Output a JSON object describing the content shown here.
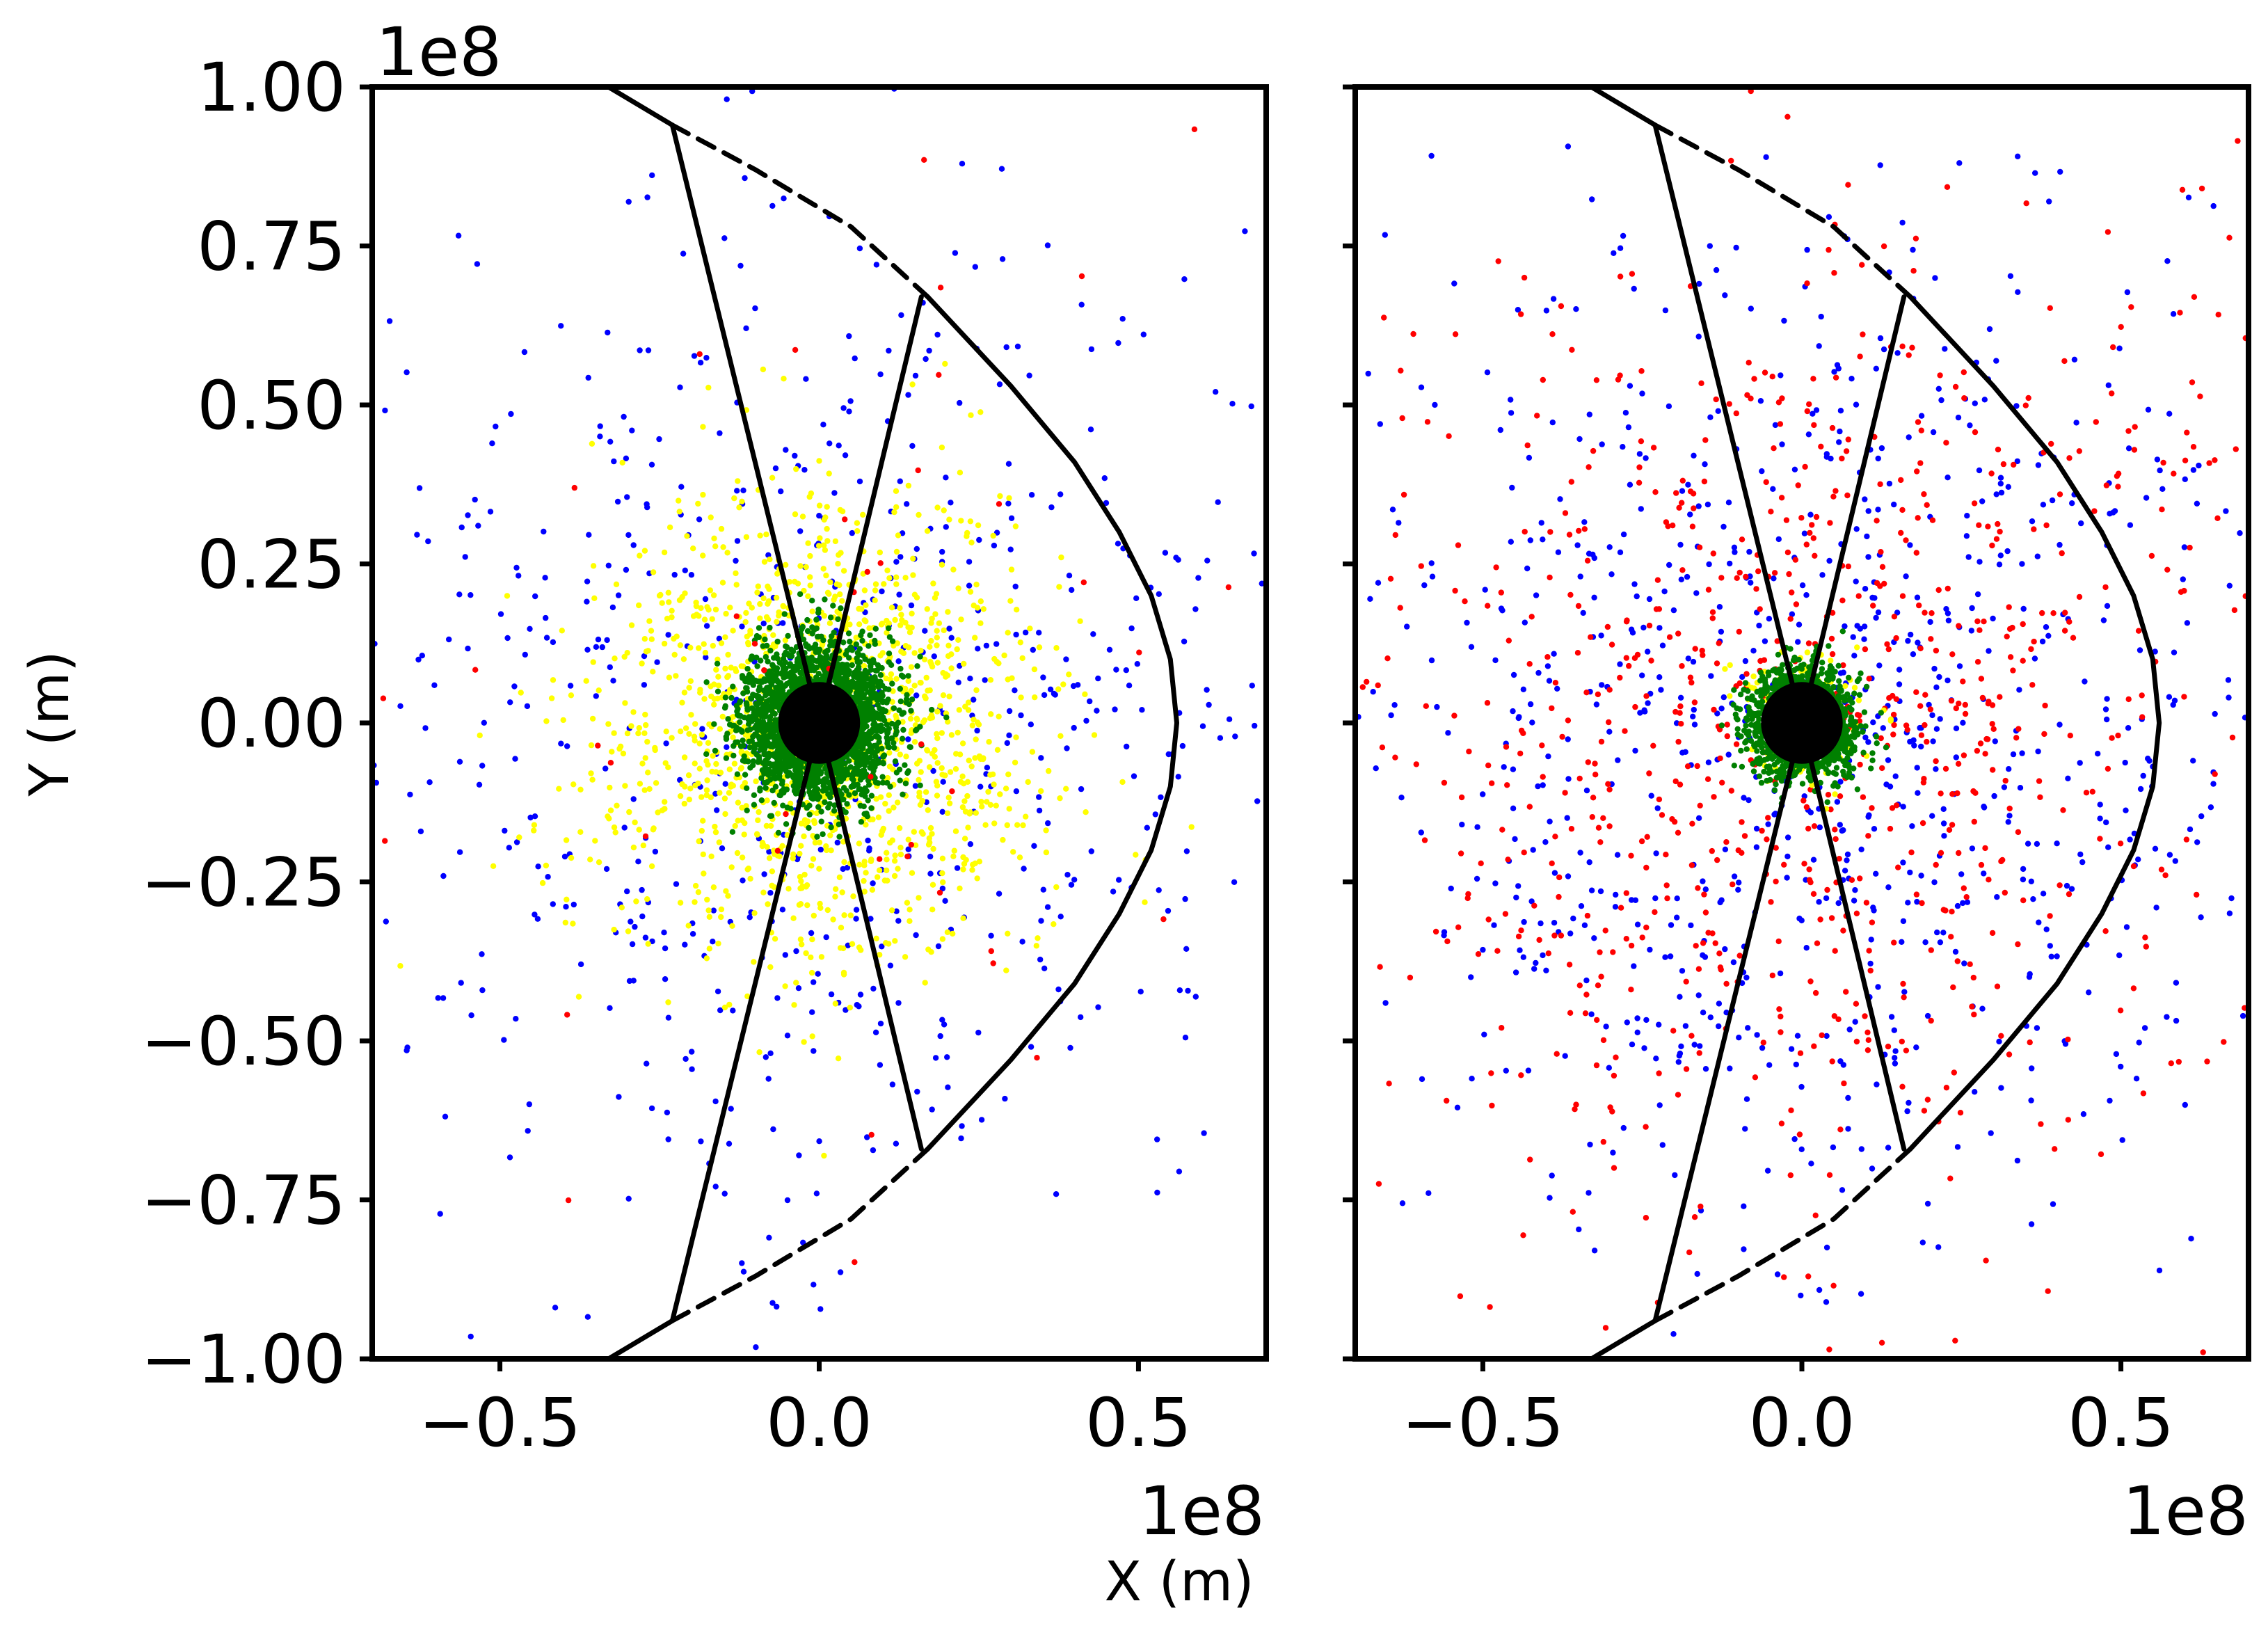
{
  "chart_data": [
    {
      "type": "scatter",
      "panel": "left",
      "xlabel": "X (m)",
      "ylabel": "Y (m)",
      "x_offset_label": "1e8",
      "y_offset_label": "1e8",
      "xlim": [
        -0.7,
        0.7
      ],
      "ylim": [
        -1.0,
        1.0
      ],
      "xticks": [
        -0.5,
        0.0,
        0.5
      ],
      "xtick_labels": [
        "−0.5",
        "0.0",
        "0.5"
      ],
      "yticks": [
        1.0,
        0.75,
        0.5,
        0.25,
        0.0,
        -0.25,
        -0.5,
        -0.75,
        -1.0
      ],
      "ytick_labels": [
        "1.00",
        "0.75",
        "0.50",
        "0.25",
        "0.00",
        "−0.25",
        "−0.50",
        "−0.75",
        "−1.00"
      ],
      "units_scale": 100000000,
      "planet": {
        "x": 0.0,
        "y": 0.0,
        "radius": 0.064,
        "color": "#000000"
      },
      "boundary_solid": [
        [
          0.17,
          0.67
        ],
        [
          0.3,
          0.53
        ],
        [
          0.4,
          0.41
        ],
        [
          0.47,
          0.3
        ],
        [
          0.52,
          0.2
        ],
        [
          0.55,
          0.1
        ],
        [
          0.56,
          0.0
        ],
        [
          0.55,
          -0.1
        ],
        [
          0.52,
          -0.2
        ],
        [
          0.47,
          -0.3
        ],
        [
          0.4,
          -0.41
        ],
        [
          0.3,
          -0.53
        ],
        [
          0.17,
          -0.67
        ]
      ],
      "boundary_dashed_upper": [
        [
          -0.23,
          0.94
        ],
        [
          -0.1,
          0.87
        ],
        [
          0.05,
          0.78
        ],
        [
          0.17,
          0.67
        ]
      ],
      "boundary_dashed_lower": [
        [
          -0.23,
          -0.94
        ],
        [
          -0.1,
          -0.87
        ],
        [
          0.05,
          -0.78
        ],
        [
          0.17,
          -0.67
        ]
      ],
      "boundary_tail_upper": [
        [
          -0.33,
          1.0
        ],
        [
          -0.23,
          0.94
        ]
      ],
      "boundary_tail_lower": [
        [
          -0.33,
          -1.0
        ],
        [
          -0.23,
          -0.94
        ]
      ],
      "sector_lines": [
        [
          [
            0.0,
            0.0
          ],
          [
            -0.23,
            0.94
          ]
        ],
        [
          [
            0.0,
            0.0
          ],
          [
            0.16,
            0.67
          ]
        ],
        [
          [
            0.0,
            0.0
          ],
          [
            -0.23,
            -0.94
          ]
        ],
        [
          [
            0.0,
            0.0
          ],
          [
            0.16,
            -0.67
          ]
        ]
      ],
      "series": [
        {
          "name": "blue particles",
          "color": "#0000ff",
          "count": 650,
          "spread": 0.4,
          "core_radius": 0.08
        },
        {
          "name": "yellow particles",
          "color": "#ffff00",
          "count": 1300,
          "spread": 0.17,
          "core_radius": 0.09
        },
        {
          "name": "green particles",
          "color": "#008000",
          "count": 2600,
          "spread": 0.055,
          "core_radius": 0.065
        },
        {
          "name": "red particles",
          "color": "#ff0000",
          "count": 45,
          "spread": 0.45,
          "core_radius": 0.1
        }
      ]
    },
    {
      "type": "scatter",
      "panel": "right",
      "xlabel": "",
      "ylabel": "",
      "x_offset_label": "1e8",
      "xlim": [
        -0.7,
        0.7
      ],
      "ylim": [
        -1.0,
        1.0
      ],
      "xticks": [
        -0.5,
        0.0,
        0.5
      ],
      "xtick_labels": [
        "−0.5",
        "0.0",
        "0.5"
      ],
      "yticks": [
        1.0,
        0.75,
        0.5,
        0.25,
        0.0,
        -0.25,
        -0.5,
        -0.75,
        -1.0
      ],
      "units_scale": 100000000,
      "planet": {
        "x": 0.0,
        "y": 0.0,
        "radius": 0.064,
        "color": "#000000"
      },
      "boundary_solid": [
        [
          0.17,
          0.67
        ],
        [
          0.3,
          0.53
        ],
        [
          0.4,
          0.41
        ],
        [
          0.47,
          0.3
        ],
        [
          0.52,
          0.2
        ],
        [
          0.55,
          0.1
        ],
        [
          0.56,
          0.0
        ],
        [
          0.55,
          -0.1
        ],
        [
          0.52,
          -0.2
        ],
        [
          0.47,
          -0.3
        ],
        [
          0.4,
          -0.41
        ],
        [
          0.3,
          -0.53
        ],
        [
          0.17,
          -0.67
        ]
      ],
      "boundary_dashed_upper": [
        [
          -0.23,
          0.94
        ],
        [
          -0.1,
          0.87
        ],
        [
          0.05,
          0.78
        ],
        [
          0.17,
          0.67
        ]
      ],
      "boundary_dashed_lower": [
        [
          -0.23,
          -0.94
        ],
        [
          -0.1,
          -0.87
        ],
        [
          0.05,
          -0.78
        ],
        [
          0.17,
          -0.67
        ]
      ],
      "boundary_tail_upper": [
        [
          -0.33,
          1.0
        ],
        [
          -0.23,
          0.94
        ]
      ],
      "boundary_tail_lower": [
        [
          -0.33,
          -1.0
        ],
        [
          -0.23,
          -0.94
        ]
      ],
      "sector_lines": [
        [
          [
            0.0,
            0.0
          ],
          [
            -0.23,
            0.94
          ]
        ],
        [
          [
            0.0,
            0.0
          ],
          [
            0.16,
            0.67
          ]
        ],
        [
          [
            0.0,
            0.0
          ],
          [
            -0.23,
            -0.94
          ]
        ],
        [
          [
            0.0,
            0.0
          ],
          [
            0.16,
            -0.67
          ]
        ]
      ],
      "series": [
        {
          "name": "blue particles",
          "color": "#0000ff",
          "count": 850,
          "spread": 0.38,
          "core_radius": 0.075
        },
        {
          "name": "red particles",
          "color": "#ff0000",
          "count": 800,
          "spread": 0.38,
          "core_radius": 0.075
        },
        {
          "name": "yellow particles",
          "color": "#ffff00",
          "count": 120,
          "spread": 0.05,
          "core_radius": 0.07
        },
        {
          "name": "green particles",
          "color": "#008000",
          "count": 1300,
          "spread": 0.04,
          "core_radius": 0.065
        }
      ]
    }
  ]
}
